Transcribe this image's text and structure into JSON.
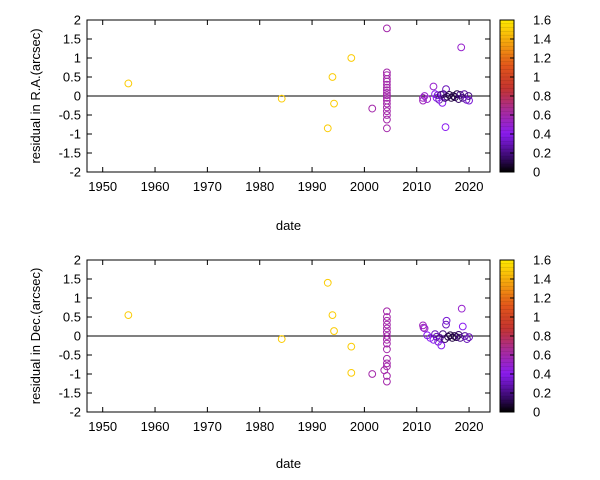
{
  "chart_data": [
    {
      "type": "scatter",
      "id": "ra",
      "xlabel": "date",
      "ylabel": "residual in R.A.(arcsec)",
      "xlim": [
        1947,
        2024
      ],
      "ylim": [
        -2,
        2
      ],
      "xticks": [
        1950,
        1960,
        1970,
        1980,
        1990,
        2000,
        2010,
        2020
      ],
      "yticks": [
        -2,
        -1.5,
        -1,
        -0.5,
        0,
        0.5,
        1,
        1.5,
        2
      ],
      "zero_line": true,
      "colorbar": {
        "min": 0,
        "max": 1.6,
        "ticks": [
          0,
          0.2,
          0.4,
          0.6,
          0.8,
          1,
          1.2,
          1.4,
          1.6
        ],
        "palette": "gnuplot black-purple-red-orange-yellow"
      },
      "points": [
        {
          "x": 1954.9,
          "y": 0.33,
          "c": 1.5
        },
        {
          "x": 1984.2,
          "y": -0.07,
          "c": 1.5
        },
        {
          "x": 1993.0,
          "y": -0.85,
          "c": 1.5
        },
        {
          "x": 1993.9,
          "y": 0.5,
          "c": 1.5
        },
        {
          "x": 1994.2,
          "y": -0.2,
          "c": 1.5
        },
        {
          "x": 1997.5,
          "y": 1.0,
          "c": 1.5
        },
        {
          "x": 2001.5,
          "y": -0.33,
          "c": 0.6
        },
        {
          "x": 2004.3,
          "y": 1.78,
          "c": 0.6
        },
        {
          "x": 2004.3,
          "y": 0.62,
          "c": 0.6
        },
        {
          "x": 2004.3,
          "y": 0.55,
          "c": 0.6
        },
        {
          "x": 2004.3,
          "y": 0.45,
          "c": 0.6
        },
        {
          "x": 2004.3,
          "y": 0.38,
          "c": 0.6
        },
        {
          "x": 2004.3,
          "y": 0.3,
          "c": 0.6
        },
        {
          "x": 2004.3,
          "y": 0.22,
          "c": 0.6
        },
        {
          "x": 2004.3,
          "y": 0.15,
          "c": 0.6
        },
        {
          "x": 2004.3,
          "y": 0.08,
          "c": 0.6
        },
        {
          "x": 2004.3,
          "y": 0.02,
          "c": 0.6
        },
        {
          "x": 2004.3,
          "y": -0.05,
          "c": 0.6
        },
        {
          "x": 2004.3,
          "y": -0.12,
          "c": 0.6
        },
        {
          "x": 2004.3,
          "y": -0.2,
          "c": 0.6
        },
        {
          "x": 2004.3,
          "y": -0.3,
          "c": 0.6
        },
        {
          "x": 2004.3,
          "y": -0.4,
          "c": 0.6
        },
        {
          "x": 2004.3,
          "y": -0.5,
          "c": 0.6
        },
        {
          "x": 2004.3,
          "y": -0.62,
          "c": 0.6
        },
        {
          "x": 2004.3,
          "y": -0.85,
          "c": 0.6
        },
        {
          "x": 2011.2,
          "y": -0.05,
          "c": 0.55
        },
        {
          "x": 2011.2,
          "y": -0.12,
          "c": 0.55
        },
        {
          "x": 2011.5,
          "y": 0.0,
          "c": 0.5
        },
        {
          "x": 2012.0,
          "y": -0.08,
          "c": 0.5
        },
        {
          "x": 2013.2,
          "y": 0.25,
          "c": 0.5
        },
        {
          "x": 2013.5,
          "y": 0.05,
          "c": 0.4
        },
        {
          "x": 2013.8,
          "y": -0.05,
          "c": 0.4
        },
        {
          "x": 2014.0,
          "y": 0.02,
          "c": 0.35
        },
        {
          "x": 2014.3,
          "y": -0.1,
          "c": 0.3
        },
        {
          "x": 2014.6,
          "y": 0.03,
          "c": 0.2
        },
        {
          "x": 2014.9,
          "y": -0.18,
          "c": 0.4
        },
        {
          "x": 2015.1,
          "y": 0.05,
          "c": 0.2
        },
        {
          "x": 2015.4,
          "y": -0.05,
          "c": 0.15
        },
        {
          "x": 2015.6,
          "y": 0.18,
          "c": 0.3
        },
        {
          "x": 2015.5,
          "y": -0.82,
          "c": 0.4
        },
        {
          "x": 2015.8,
          "y": -0.02,
          "c": 0.15
        },
        {
          "x": 2016.2,
          "y": 0.03,
          "c": 0.1
        },
        {
          "x": 2016.6,
          "y": -0.05,
          "c": 0.1
        },
        {
          "x": 2017.0,
          "y": 0.0,
          "c": 0.1
        },
        {
          "x": 2017.3,
          "y": -0.03,
          "c": 0.1
        },
        {
          "x": 2017.7,
          "y": 0.05,
          "c": 0.1
        },
        {
          "x": 2018.0,
          "y": -0.08,
          "c": 0.15
        },
        {
          "x": 2018.3,
          "y": 0.03,
          "c": 0.2
        },
        {
          "x": 2018.5,
          "y": 1.28,
          "c": 0.5
        },
        {
          "x": 2018.8,
          "y": -0.05,
          "c": 0.2
        },
        {
          "x": 2019.1,
          "y": 0.05,
          "c": 0.25
        },
        {
          "x": 2019.5,
          "y": -0.1,
          "c": 0.3
        },
        {
          "x": 2019.9,
          "y": 0.0,
          "c": 0.2
        },
        {
          "x": 2020.0,
          "y": -0.12,
          "c": 0.35
        }
      ]
    },
    {
      "type": "scatter",
      "id": "dec",
      "xlabel": "date",
      "ylabel": "residual in Dec.(arcsec)",
      "xlim": [
        1947,
        2024
      ],
      "ylim": [
        -2,
        2
      ],
      "xticks": [
        1950,
        1960,
        1970,
        1980,
        1990,
        2000,
        2010,
        2020
      ],
      "yticks": [
        -2,
        -1.5,
        -1,
        -0.5,
        0,
        0.5,
        1,
        1.5,
        2
      ],
      "zero_line": true,
      "colorbar": {
        "min": 0,
        "max": 1.6,
        "ticks": [
          0,
          0.2,
          0.4,
          0.6,
          0.8,
          1,
          1.2,
          1.4,
          1.6
        ],
        "palette": "gnuplot black-purple-red-orange-yellow"
      },
      "points": [
        {
          "x": 1954.9,
          "y": 0.55,
          "c": 1.5
        },
        {
          "x": 1984.2,
          "y": -0.08,
          "c": 1.5
        },
        {
          "x": 1993.0,
          "y": 1.4,
          "c": 1.5
        },
        {
          "x": 1993.9,
          "y": 0.55,
          "c": 1.5
        },
        {
          "x": 1994.2,
          "y": 0.13,
          "c": 1.5
        },
        {
          "x": 1997.5,
          "y": -0.28,
          "c": 1.5
        },
        {
          "x": 1997.5,
          "y": -0.97,
          "c": 1.5
        },
        {
          "x": 2001.5,
          "y": -1.0,
          "c": 0.6
        },
        {
          "x": 2003.8,
          "y": -0.9,
          "c": 0.6
        },
        {
          "x": 2004.3,
          "y": 0.65,
          "c": 0.6
        },
        {
          "x": 2004.3,
          "y": 0.5,
          "c": 0.6
        },
        {
          "x": 2004.3,
          "y": 0.4,
          "c": 0.6
        },
        {
          "x": 2004.3,
          "y": 0.3,
          "c": 0.6
        },
        {
          "x": 2004.3,
          "y": 0.2,
          "c": 0.6
        },
        {
          "x": 2004.3,
          "y": 0.1,
          "c": 0.6
        },
        {
          "x": 2004.3,
          "y": 0.0,
          "c": 0.6
        },
        {
          "x": 2004.3,
          "y": -0.1,
          "c": 0.6
        },
        {
          "x": 2004.3,
          "y": -0.2,
          "c": 0.6
        },
        {
          "x": 2004.3,
          "y": -0.35,
          "c": 0.6
        },
        {
          "x": 2004.3,
          "y": -0.6,
          "c": 0.6
        },
        {
          "x": 2004.3,
          "y": -0.72,
          "c": 0.6
        },
        {
          "x": 2004.3,
          "y": -0.8,
          "c": 0.6
        },
        {
          "x": 2004.3,
          "y": -1.05,
          "c": 0.6
        },
        {
          "x": 2004.3,
          "y": -1.2,
          "c": 0.6
        },
        {
          "x": 2011.2,
          "y": 0.28,
          "c": 0.55
        },
        {
          "x": 2011.3,
          "y": 0.22,
          "c": 0.55
        },
        {
          "x": 2011.5,
          "y": 0.2,
          "c": 0.5
        },
        {
          "x": 2012.0,
          "y": 0.02,
          "c": 0.4
        },
        {
          "x": 2012.6,
          "y": -0.05,
          "c": 0.4
        },
        {
          "x": 2013.2,
          "y": -0.1,
          "c": 0.4
        },
        {
          "x": 2013.5,
          "y": 0.05,
          "c": 0.3
        },
        {
          "x": 2013.8,
          "y": -0.02,
          "c": 0.3
        },
        {
          "x": 2014.1,
          "y": -0.15,
          "c": 0.35
        },
        {
          "x": 2014.4,
          "y": -0.05,
          "c": 0.25
        },
        {
          "x": 2014.7,
          "y": -0.25,
          "c": 0.4
        },
        {
          "x": 2015.0,
          "y": 0.05,
          "c": 0.2
        },
        {
          "x": 2015.4,
          "y": -0.08,
          "c": 0.15
        },
        {
          "x": 2015.6,
          "y": 0.3,
          "c": 0.3
        },
        {
          "x": 2015.7,
          "y": 0.4,
          "c": 0.35
        },
        {
          "x": 2016.0,
          "y": -0.02,
          "c": 0.1
        },
        {
          "x": 2016.4,
          "y": 0.02,
          "c": 0.1
        },
        {
          "x": 2016.8,
          "y": -0.05,
          "c": 0.1
        },
        {
          "x": 2017.2,
          "y": 0.0,
          "c": 0.1
        },
        {
          "x": 2017.6,
          "y": -0.03,
          "c": 0.1
        },
        {
          "x": 2018.0,
          "y": 0.03,
          "c": 0.15
        },
        {
          "x": 2018.3,
          "y": -0.05,
          "c": 0.2
        },
        {
          "x": 2018.6,
          "y": 0.72,
          "c": 0.5
        },
        {
          "x": 2018.8,
          "y": 0.25,
          "c": 0.4
        },
        {
          "x": 2019.2,
          "y": 0.0,
          "c": 0.25
        },
        {
          "x": 2019.6,
          "y": -0.08,
          "c": 0.3
        },
        {
          "x": 2020.0,
          "y": -0.03,
          "c": 0.3
        }
      ]
    }
  ]
}
